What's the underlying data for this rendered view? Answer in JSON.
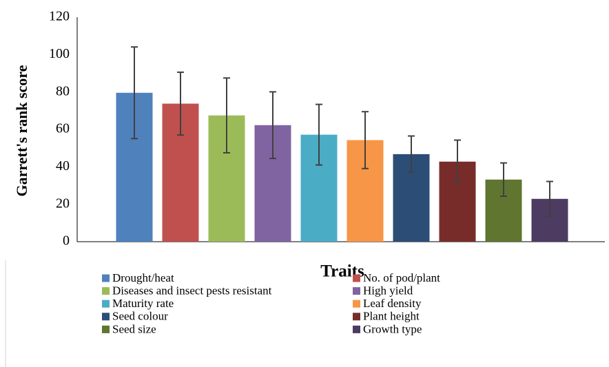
{
  "chart_data": {
    "type": "bar",
    "y_label": "Garrett's rank score",
    "x_label": "Traits",
    "ylim": [
      0,
      120
    ],
    "yticks": [
      0,
      20,
      40,
      60,
      80,
      100,
      120
    ],
    "grid": false,
    "legend": "bottom",
    "series": [
      {
        "name": "Drought/heat",
        "color": "#4f81bd",
        "values": [
          79.6
        ],
        "errors": [
          24.5
        ]
      },
      {
        "name": "No. of pod/plant",
        "color": "#c0504d",
        "values": [
          73.8
        ],
        "errors": [
          16.8
        ]
      },
      {
        "name": "Diseases and insect pests resistant",
        "color": "#9bbb59",
        "values": [
          67.5
        ],
        "errors": [
          20
        ]
      },
      {
        "name": "High yield",
        "color": "#8064a2",
        "values": [
          62.3
        ],
        "errors": [
          17.8
        ]
      },
      {
        "name": "Maturity rate",
        "color": "#4bacc6",
        "values": [
          57.2
        ],
        "errors": [
          16.2
        ]
      },
      {
        "name": "Leaf density",
        "color": "#f79646",
        "values": [
          54.3
        ],
        "errors": [
          15.2
        ]
      },
      {
        "name": "Seed colour",
        "color": "#2c4d75",
        "values": [
          46.8
        ],
        "errors": [
          9.7
        ]
      },
      {
        "name": "Plant height",
        "color": "#772c2a",
        "values": [
          42.8
        ],
        "errors": [
          11.5
        ]
      },
      {
        "name": "Seed size",
        "color": "#5f7530",
        "values": [
          33.2
        ],
        "errors": [
          8.9
        ]
      },
      {
        "name": "Growth type",
        "color": "#4d3b62",
        "values": [
          22.9
        ],
        "errors": [
          9.3
        ]
      }
    ]
  }
}
